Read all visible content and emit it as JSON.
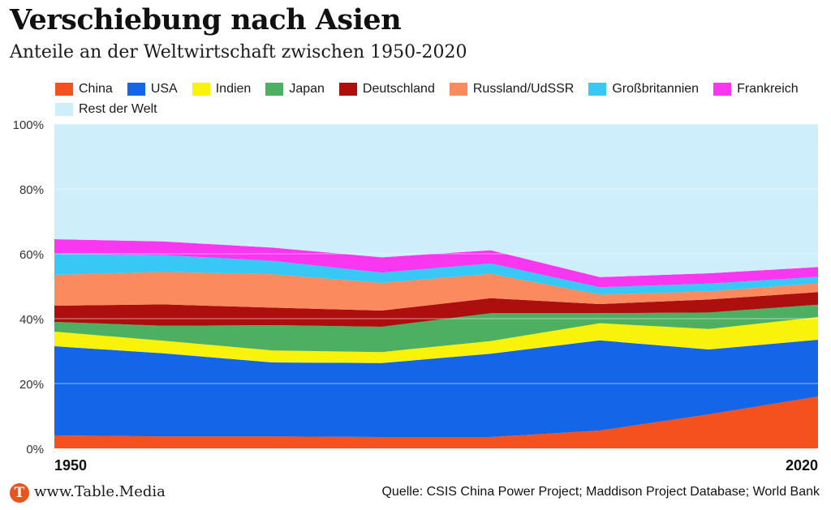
{
  "header": {
    "title": "Verschiebung nach Asien",
    "subtitle": "Anteile an der Weltwirtschaft zwischen 1950-2020"
  },
  "footer": {
    "logo_letter": "T",
    "site": "www.Table.Media",
    "source": "Quelle: CSIS China Power Project; Maddison Project Database; World Bank"
  },
  "colors": {
    "gridline": "#ffffff",
    "text": "#111111"
  },
  "chart_data": {
    "type": "area",
    "stacked": true,
    "x": [
      1950,
      1960,
      1970,
      1980,
      1990,
      2000,
      2010,
      2020
    ],
    "x_tick_labels": [
      "1950",
      "2020"
    ],
    "y_tick_labels": [
      "0%",
      "20%",
      "40%",
      "60%",
      "80%",
      "100%"
    ],
    "ylim": [
      0,
      100
    ],
    "grid": true,
    "legend_position": "top",
    "series": [
      {
        "name": "China",
        "color": "#f4511e",
        "values": [
          4,
          3.7,
          3.7,
          3.5,
          3.5,
          5.5,
          10.5,
          16
        ]
      },
      {
        "name": "USA",
        "color": "#1565e8",
        "values": [
          27.5,
          25.6,
          22.8,
          22.8,
          25.7,
          27.8,
          20,
          17.5
        ]
      },
      {
        "name": "Indien",
        "color": "#f9f20a",
        "values": [
          4.5,
          3.9,
          3.7,
          3.4,
          3.9,
          5.3,
          6.3,
          7
        ]
      },
      {
        "name": "Japan",
        "color": "#4caf61",
        "values": [
          3,
          4.6,
          7.8,
          7.8,
          8.6,
          3.1,
          5.1,
          3.8
        ]
      },
      {
        "name": "Deutschland",
        "color": "#ad0f0f",
        "values": [
          5,
          6.6,
          5.4,
          5,
          4.6,
          2.8,
          4,
          3.9
        ]
      },
      {
        "name": "Russland/UdSSR",
        "color": "#fb8a5e",
        "values": [
          9.5,
          10,
          10.3,
          8.5,
          7.5,
          2.9,
          2.5,
          2.7
        ]
      },
      {
        "name": "Großbritannien",
        "color": "#37c8f5",
        "values": [
          6.5,
          5.2,
          4.1,
          3.2,
          3.2,
          2.3,
          2.4,
          2
        ]
      },
      {
        "name": "Frankreich",
        "color": "#f936f0",
        "values": [
          4.5,
          4.2,
          4.1,
          4.7,
          4.1,
          3.1,
          3.2,
          3
        ]
      },
      {
        "name": "Rest der Welt",
        "color": "#cdeefa",
        "values": [
          35.5,
          36.2,
          38.1,
          41.1,
          38.9,
          47.2,
          46,
          44.1
        ]
      }
    ]
  }
}
